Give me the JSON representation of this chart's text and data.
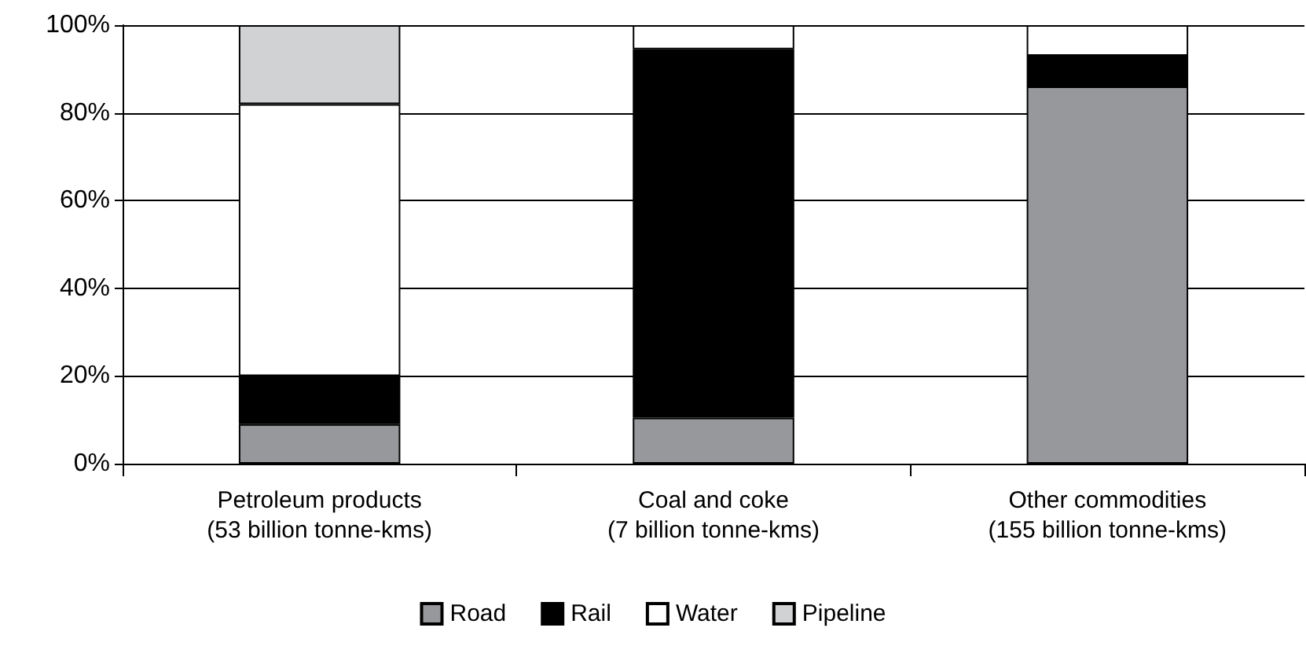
{
  "chart_data": {
    "type": "bar",
    "stacked": true,
    "categories": [
      "Petroleum products\n(53 billion tonne-kms)",
      "Coal and coke\n(7 billion tonne-kms)",
      "Other commodities\n(155 billion tonne-kms)"
    ],
    "series": [
      {
        "name": "Road",
        "color": "#97989b",
        "values": [
          9,
          10.5,
          86
        ]
      },
      {
        "name": "Rail",
        "color": "#000000",
        "values": [
          11,
          84,
          7
        ]
      },
      {
        "name": "Water",
        "color": "#ffffff",
        "values": [
          62,
          5.5,
          7
        ]
      },
      {
        "name": "Pipeline",
        "color": "#d1d2d4",
        "values": [
          18,
          null,
          null
        ]
      }
    ],
    "ylim": [
      0,
      100
    ],
    "yticks": [
      {
        "value": 0,
        "label": "0%"
      },
      {
        "value": 20,
        "label": "20%"
      },
      {
        "value": 40,
        "label": "40%"
      },
      {
        "value": 60,
        "label": "60%"
      },
      {
        "value": 80,
        "label": "80%"
      },
      {
        "value": 100,
        "label": "100%"
      }
    ],
    "grid": "y",
    "legend": "bottom"
  }
}
